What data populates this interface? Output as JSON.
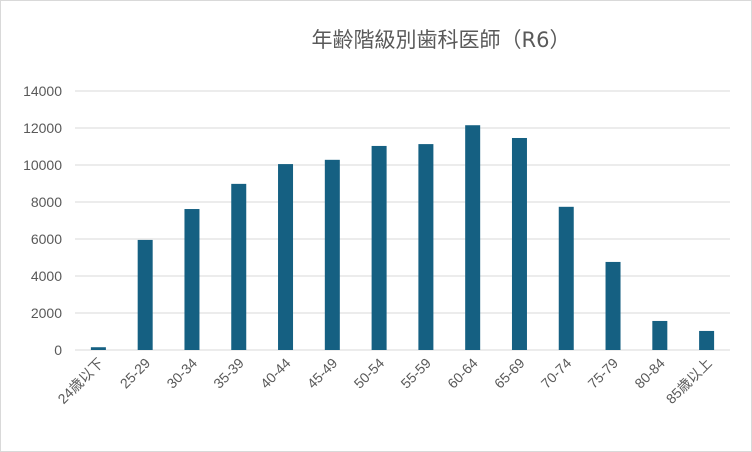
{
  "chart_data": {
    "type": "bar",
    "title": "年齢階級別歯科医師（R6）",
    "xlabel": "",
    "ylabel": "",
    "categories": [
      "24歳以下",
      "25-29",
      "30-34",
      "35-39",
      "40-44",
      "45-49",
      "50-54",
      "55-59",
      "60-64",
      "65-69",
      "70-74",
      "75-79",
      "80-84",
      "85歳以上"
    ],
    "series": [
      {
        "values": [
          150,
          5950,
          7620,
          8980,
          10050,
          10280,
          11030,
          11130,
          12150,
          11460,
          7740,
          4760,
          1570,
          1030
        ]
      }
    ],
    "ylim": [
      0,
      14000
    ],
    "yticks": [
      0,
      2000,
      4000,
      6000,
      8000,
      10000,
      12000,
      14000
    ],
    "grid": true,
    "legend": "none",
    "bar_color": "#156082",
    "grid_color": "#d9d9d9"
  }
}
